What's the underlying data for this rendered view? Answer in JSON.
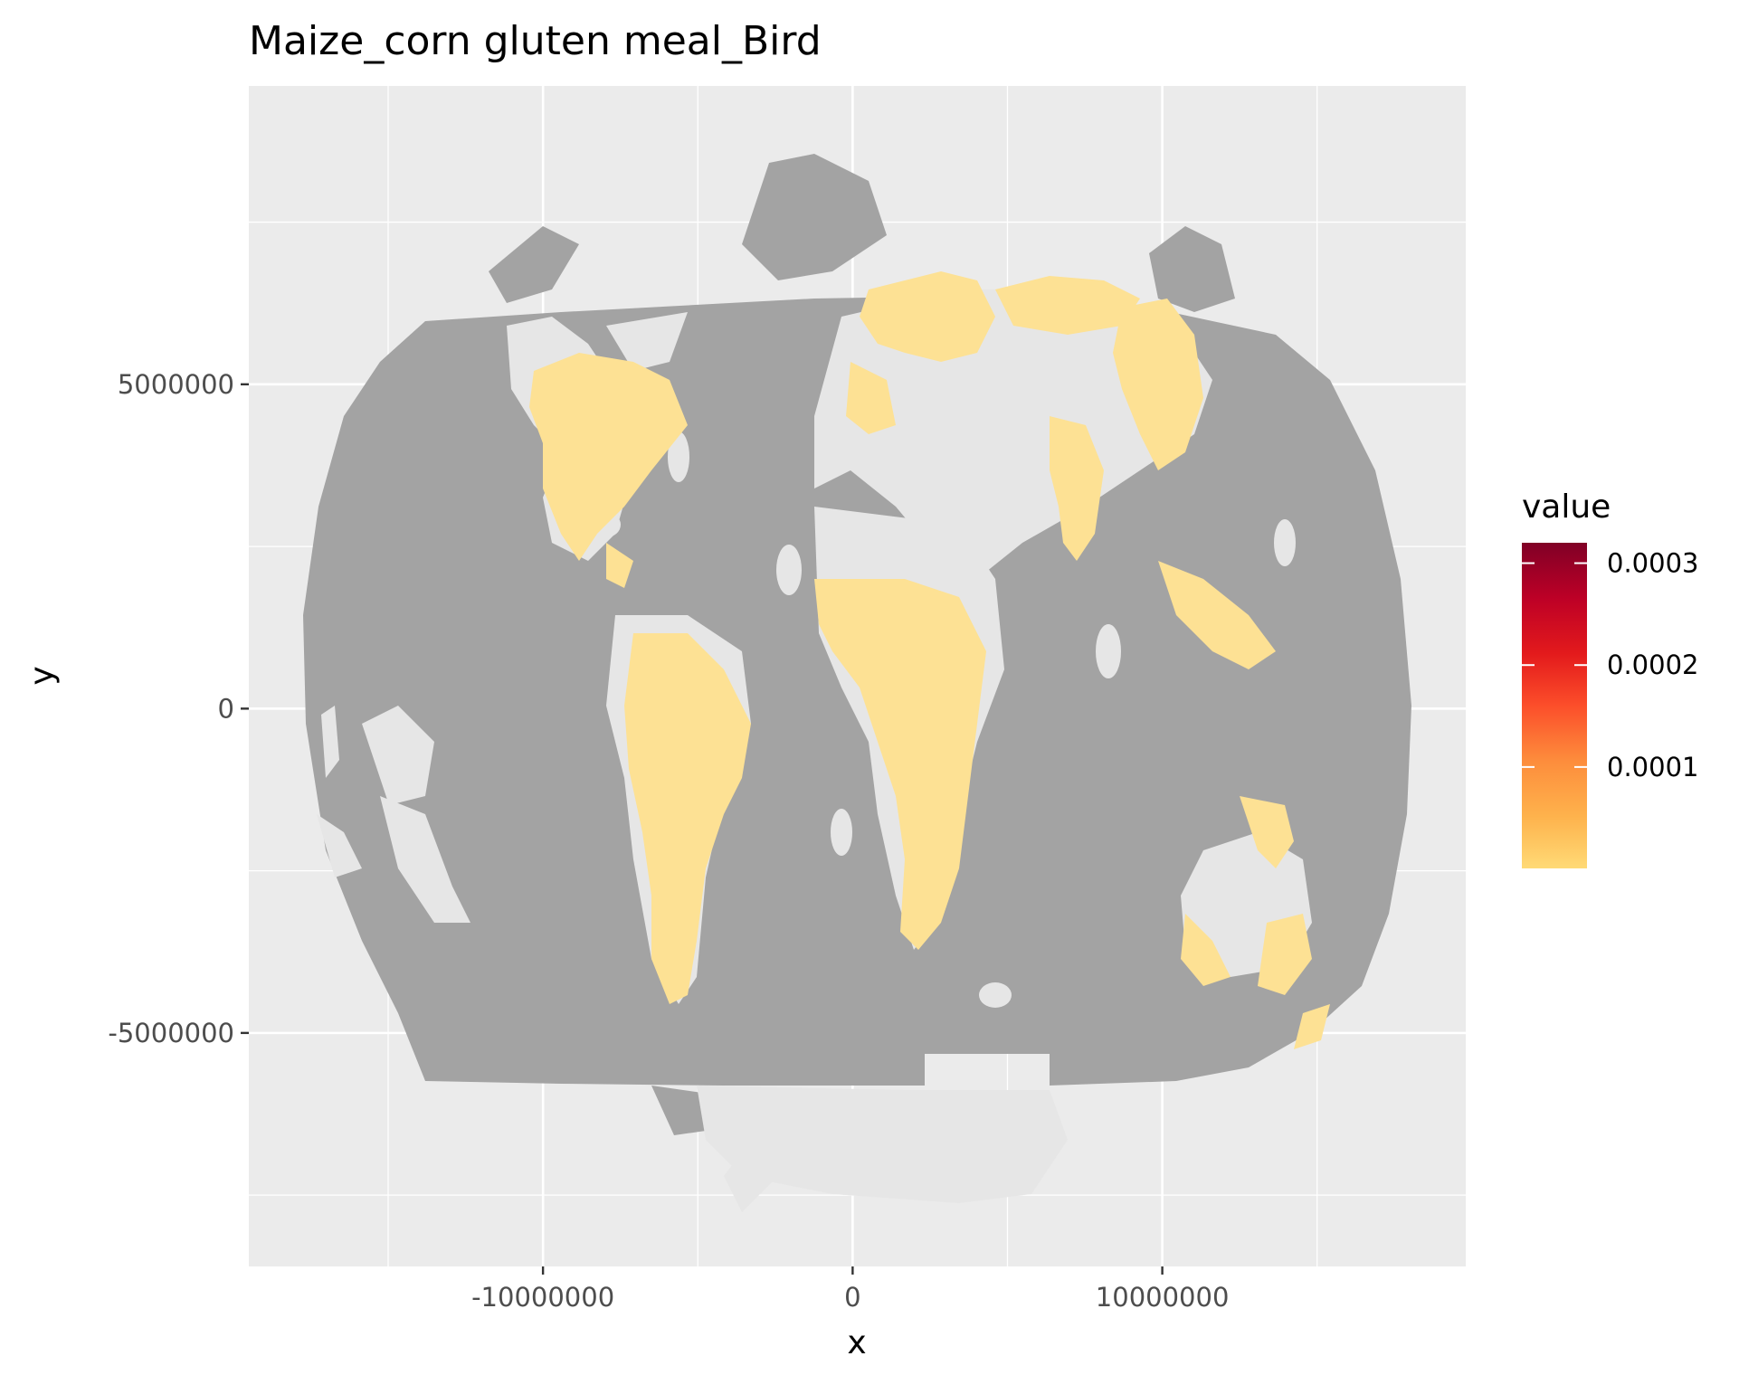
{
  "chart_data": {
    "type": "heatmap",
    "title": "Maize_corn gluten meal_Bird",
    "xlabel": "x",
    "ylabel": "y",
    "x_ticks": [
      {
        "value": -10000000,
        "label": "-10000000"
      },
      {
        "value": 0,
        "label": "0"
      },
      {
        "value": 10000000,
        "label": "10000000"
      }
    ],
    "y_ticks": [
      {
        "value": 5000000,
        "label": "5000000"
      },
      {
        "value": 0,
        "label": "0"
      },
      {
        "value": -5000000,
        "label": "-5000000"
      }
    ],
    "xlim": [
      -19500000,
      19800000
    ],
    "ylim": [
      -8600000,
      9600000
    ],
    "grid": true,
    "legend": {
      "title": "value",
      "placement": "right",
      "range": [
        5e-07,
        0.00032
      ],
      "breaks": [
        {
          "value": 0.0001,
          "label": "0.0001"
        },
        {
          "value": 0.0002,
          "label": "0.0002"
        },
        {
          "value": 0.0003,
          "label": "0.0003"
        }
      ],
      "colors": [
        "#ffda76",
        "#feb24c",
        "#fd8d3c",
        "#fc4e2a",
        "#e31a1c",
        "#bd0026",
        "#800026"
      ]
    },
    "colors": {
      "panel": "#ebebeb",
      "no_data": "#a3a3a3",
      "low_value": "#fde194",
      "gridline": "#ffffff"
    }
  }
}
